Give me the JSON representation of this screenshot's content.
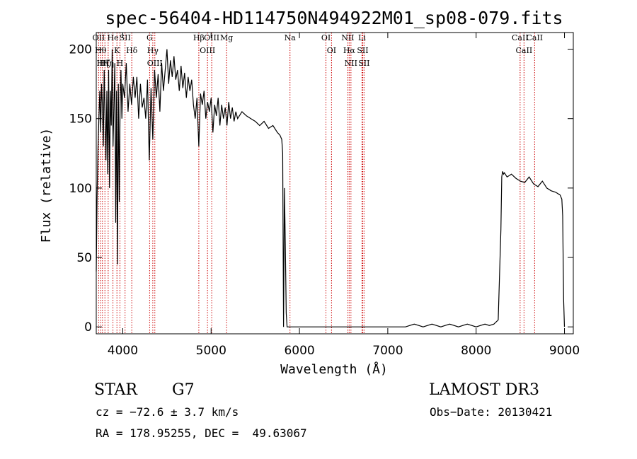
{
  "chart_data": {
    "type": "line",
    "title": "spec-56404-HD114750N494922M01_sp08-079.fits",
    "xlabel": "Wavelength (Å)",
    "ylabel": "Flux (relative)",
    "xlim": [
      3700,
      9100
    ],
    "ylim": [
      -5,
      212
    ],
    "x_ticks": [
      4000,
      5000,
      6000,
      7000,
      8000,
      9000
    ],
    "y_ticks": [
      0,
      50,
      100,
      150,
      200
    ],
    "series": [
      {
        "x": [
          3700,
          3710,
          3720,
          3730,
          3740,
          3750,
          3760,
          3770,
          3780,
          3790,
          3800,
          3810,
          3820,
          3830,
          3840,
          3850,
          3860,
          3870,
          3880,
          3890,
          3900,
          3910,
          3920,
          3930,
          3940,
          3950,
          3960,
          3970,
          3980,
          3990,
          4000,
          4020,
          4040,
          4060,
          4080,
          4100,
          4120,
          4140,
          4160,
          4180,
          4200,
          4220,
          4240,
          4260,
          4280,
          4300,
          4320,
          4340,
          4360,
          4380,
          4400,
          4420,
          4440,
          4460,
          4480,
          4500,
          4520,
          4540,
          4560,
          4580,
          4600,
          4620,
          4640,
          4660,
          4680,
          4700,
          4720,
          4740,
          4760,
          4780,
          4800,
          4820,
          4840,
          4861,
          4880,
          4900,
          4920,
          4940,
          4960,
          4980,
          5000,
          5020,
          5040,
          5060,
          5080,
          5100,
          5120,
          5140,
          5160,
          5180,
          5200,
          5220,
          5240,
          5260,
          5280,
          5300,
          5350,
          5400,
          5450,
          5500,
          5550,
          5600,
          5650,
          5700,
          5750,
          5780,
          5800,
          5810,
          5820,
          5830,
          5840,
          5850,
          5860,
          5870,
          5880,
          5890,
          5900,
          6000,
          6100,
          6200,
          6300,
          6400,
          6500,
          6600,
          6700,
          6800,
          6900,
          7000,
          7100,
          7200,
          7250,
          7300,
          7350,
          7400,
          7450,
          7500,
          7550,
          7600,
          7650,
          7700,
          7750,
          7800,
          7850,
          7900,
          7950,
          8000,
          8050,
          8100,
          8150,
          8200,
          8250,
          8280,
          8290,
          8300,
          8310,
          8320,
          8350,
          8400,
          8450,
          8500,
          8550,
          8600,
          8650,
          8700,
          8750,
          8800,
          8850,
          8900,
          8950,
          8970,
          8980,
          8990,
          9000
        ],
        "values": [
          40,
          95,
          130,
          150,
          170,
          140,
          175,
          160,
          130,
          185,
          150,
          120,
          170,
          110,
          185,
          100,
          170,
          145,
          200,
          130,
          160,
          190,
          75,
          170,
          45,
          175,
          90,
          160,
          185,
          150,
          175,
          165,
          190,
          155,
          175,
          160,
          180,
          165,
          180,
          150,
          175,
          158,
          165,
          150,
          178,
          120,
          172,
          135,
          185,
          165,
          182,
          155,
          190,
          170,
          185,
          200,
          175,
          192,
          180,
          195,
          178,
          185,
          170,
          188,
          172,
          183,
          165,
          180,
          170,
          178,
          160,
          150,
          165,
          130,
          168,
          160,
          170,
          150,
          162,
          155,
          165,
          140,
          160,
          152,
          165,
          145,
          160,
          150,
          158,
          145,
          162,
          150,
          158,
          148,
          155,
          150,
          155,
          152,
          150,
          148,
          145,
          148,
          143,
          145,
          140,
          138,
          135,
          125,
          0,
          100,
          60,
          10,
          0,
          0,
          0,
          0,
          0,
          0,
          0,
          0,
          0,
          0,
          0,
          0,
          0,
          0,
          0,
          0,
          0,
          0,
          1,
          2,
          1,
          0,
          1,
          2,
          1,
          0,
          1,
          2,
          1,
          0,
          1,
          2,
          1,
          0,
          1,
          2,
          1,
          2,
          5,
          70,
          108,
          112,
          110,
          111,
          108,
          110,
          107,
          105,
          104,
          108,
          103,
          101,
          105,
          100,
          98,
          97,
          95,
          92,
          80,
          20,
          0
        ]
      }
    ],
    "lines": [
      {
        "x": 3727,
        "label": "OII"
      },
      {
        "x": 3750,
        "label": "Hθ"
      },
      {
        "x": 3770,
        "label": "Hη"
      },
      {
        "x": 3798,
        "label": "Hζ"
      },
      {
        "x": 3835,
        "label": "Hη"
      },
      {
        "x": 3889,
        "label": "He"
      },
      {
        "x": 3934,
        "label": "K"
      },
      {
        "x": 3968,
        "label": "H"
      },
      {
        "x": 4026,
        "label": "SII"
      },
      {
        "x": 4102,
        "label": "Hδ"
      },
      {
        "x": 4304,
        "label": "G"
      },
      {
        "x": 4340,
        "label": "Hγ"
      },
      {
        "x": 4363,
        "label": "OIII"
      },
      {
        "x": 4861,
        "label": "Hβ"
      },
      {
        "x": 4959,
        "label": "OIII"
      },
      {
        "x": 5007,
        "label": "OIII"
      },
      {
        "x": 5175,
        "label": "Mg"
      },
      {
        "x": 5893,
        "label": "Na"
      },
      {
        "x": 6300,
        "label": "OI"
      },
      {
        "x": 6363,
        "label": "OI"
      },
      {
        "x": 6548,
        "label": "NII"
      },
      {
        "x": 6563,
        "label": "Hα"
      },
      {
        "x": 6583,
        "label": "NII"
      },
      {
        "x": 6708,
        "label": "Li"
      },
      {
        "x": 6716,
        "label": "SII"
      },
      {
        "x": 6731,
        "label": "SII"
      },
      {
        "x": 8498,
        "label": "CaII"
      },
      {
        "x": 8542,
        "label": "CaII"
      },
      {
        "x": 8662,
        "label": "CaII"
      }
    ],
    "line_color": "#cc0000",
    "grid": false
  },
  "info": {
    "class_label": "STAR",
    "subclass_label": "G7",
    "survey_label": "LAMOST DR3",
    "cz_text": "cz = −72.6 ± 3.7 km/s",
    "obs_date_text": "Obs−Date: 20130421",
    "radec_text": "RA = 178.95255, DEC =  49.63067"
  }
}
